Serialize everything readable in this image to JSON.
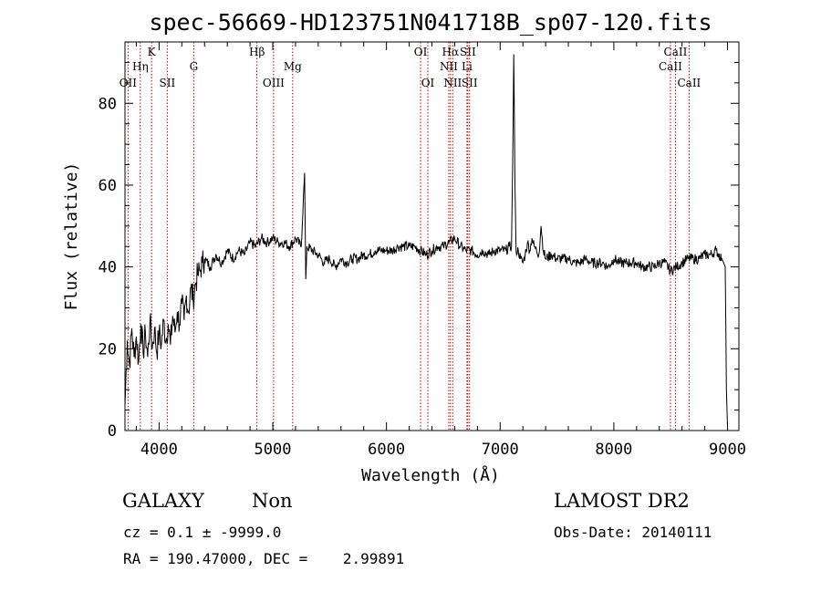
{
  "chart_data": {
    "type": "line",
    "title": "spec-56669-HD123751N041718B_sp07-120.fits",
    "xlabel": "Wavelength (Å)",
    "ylabel": "Flux (relative)",
    "xlim": [
      3700,
      9100
    ],
    "ylim": [
      0,
      95
    ],
    "xticks": [
      4000,
      5000,
      6000,
      7000,
      8000,
      9000
    ],
    "yticks": [
      0,
      20,
      40,
      60,
      80
    ],
    "series": [
      {
        "x": [
          3700,
          3720,
          3740,
          3760,
          3780,
          3800,
          3820,
          3840,
          3860,
          3880,
          3900,
          3920,
          3940,
          3960,
          3980,
          4000,
          4020,
          4040,
          4060,
          4080,
          4100,
          4120,
          4140,
          4160,
          4180,
          4200,
          4220,
          4240,
          4260,
          4280,
          4300,
          4320,
          4340,
          4360,
          4380,
          4400,
          4450,
          4500,
          4550,
          4600,
          4650,
          4700,
          4750,
          4800,
          4850,
          4900,
          4950,
          5000,
          5050,
          5100,
          5150,
          5200,
          5250,
          5280,
          5290,
          5300,
          5350,
          5400,
          5450,
          5500,
          5550,
          5600,
          5650,
          5700,
          5750,
          5800,
          5850,
          5900,
          5950,
          6000,
          6050,
          6100,
          6150,
          6200,
          6250,
          6300,
          6350,
          6400,
          6450,
          6500,
          6550,
          6600,
          6650,
          6700,
          6750,
          6800,
          6850,
          6900,
          6950,
          7000,
          7050,
          7080,
          7100,
          7110,
          7120,
          7130,
          7140,
          7160,
          7180,
          7200,
          7220,
          7240,
          7260,
          7280,
          7300,
          7320,
          7340,
          7360,
          7380,
          7400,
          7450,
          7500,
          7550,
          7600,
          7650,
          7700,
          7750,
          7800,
          7850,
          7900,
          7950,
          8000,
          8050,
          8100,
          8150,
          8200,
          8250,
          8300,
          8350,
          8400,
          8450,
          8500,
          8550,
          8600,
          8650,
          8700,
          8750,
          8800,
          8850,
          8900,
          8950,
          8980,
          8990,
          9000
        ],
        "y": [
          6,
          22,
          16,
          25,
          18,
          23,
          17,
          26,
          19,
          24,
          18,
          27,
          20,
          25,
          19,
          24,
          21,
          27,
          22,
          26,
          21,
          28,
          24,
          29,
          26,
          31,
          27,
          33,
          29,
          35,
          32,
          36,
          38,
          39,
          41,
          42,
          40,
          43,
          41,
          44,
          42,
          44,
          43,
          46,
          45,
          47,
          46,
          47,
          46,
          46,
          45,
          47,
          45,
          63,
          37,
          45,
          44,
          43,
          41,
          42,
          40,
          42,
          41,
          42,
          42,
          43,
          43,
          44,
          44,
          44,
          44,
          45,
          45,
          45,
          45,
          44,
          43,
          44,
          45,
          45,
          46,
          47,
          45,
          44,
          44,
          43,
          44,
          43,
          44,
          44,
          44,
          45,
          45,
          65,
          92,
          60,
          44,
          44,
          42,
          41,
          43,
          46,
          44,
          47,
          45,
          44,
          43,
          50,
          44,
          42,
          43,
          42,
          42,
          42,
          41,
          41,
          42,
          41,
          41,
          41,
          40,
          42,
          41,
          41,
          41,
          41,
          40,
          40,
          40,
          41,
          41,
          39,
          40,
          41,
          42,
          42,
          42,
          43,
          43,
          44,
          42,
          40,
          10,
          1
        ]
      }
    ],
    "spectral_lines": [
      {
        "label": "OII",
        "x": 3727,
        "row": 3
      },
      {
        "label": "Hη",
        "x": 3835,
        "row": 2
      },
      {
        "label": "K",
        "x": 3934,
        "row": 1
      },
      {
        "label": "SII",
        "x": 4072,
        "row": 3
      },
      {
        "label": "G",
        "x": 4305,
        "row": 2
      },
      {
        "label": "Hβ",
        "x": 4861,
        "row": 1
      },
      {
        "label": "OIII",
        "x": 5007,
        "row": 3
      },
      {
        "label": "Mg",
        "x": 5175,
        "row": 2
      },
      {
        "label": "OI",
        "x": 6300,
        "row": 1
      },
      {
        "label": "OI",
        "x": 6364,
        "row": 3
      },
      {
        "label": "Hα",
        "x": 6563,
        "row": 1
      },
      {
        "label": "NII",
        "x": 6548,
        "row": 2
      },
      {
        "label": "NII",
        "x": 6583,
        "row": 3
      },
      {
        "label": "SII",
        "x": 6716,
        "row": 1
      },
      {
        "label": "Li",
        "x": 6708,
        "row": 2
      },
      {
        "label": "SII",
        "x": 6731,
        "row": 3
      },
      {
        "label": "CaII",
        "x": 8542,
        "row": 1
      },
      {
        "label": "CaII",
        "x": 8498,
        "row": 2
      },
      {
        "label": "CaII",
        "x": 8662,
        "row": 3
      }
    ],
    "line_color": "#000000",
    "marker_color": "#c00000",
    "grid": false
  },
  "info": {
    "class": "GALAXY",
    "subclass": "Non",
    "survey": "LAMOST DR2",
    "cz": "cz = 0.1 ± -9999.0",
    "obs_date": "Obs-Date: 20140111",
    "radec": "RA = 190.47000, DEC =    2.99891"
  }
}
